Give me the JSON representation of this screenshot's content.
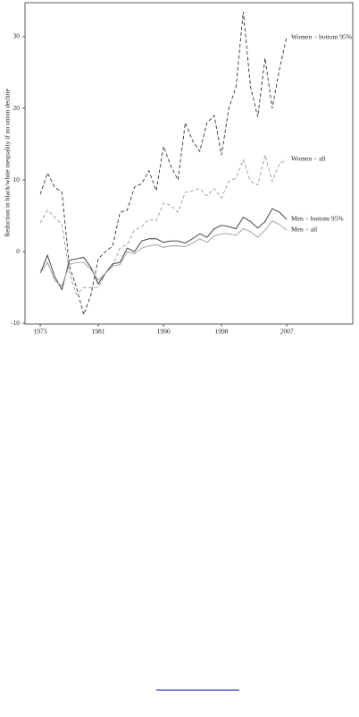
{
  "chart_data": {
    "type": "line",
    "y_label": "Reduction in black/white inequality if no union decline",
    "x": [
      1973,
      1974,
      1975,
      1976,
      1977,
      1978,
      1979,
      1980,
      1981,
      1982,
      1983,
      1984,
      1985,
      1986,
      1987,
      1988,
      1989,
      1990,
      1991,
      1992,
      1993,
      1994,
      1995,
      1996,
      1997,
      1998,
      1999,
      2000,
      2001,
      2002,
      2003,
      2004,
      2005,
      2006,
      2007
    ],
    "xlim": [
      1970.9,
      2016.1
    ],
    "xticks": [
      1973,
      1981,
      1990,
      1998,
      2007
    ],
    "ylim": [
      -10.1,
      34.75
    ],
    "yticks": [
      -10,
      0,
      10,
      20,
      30
    ],
    "series": [
      {
        "name": "Women − bottom 95%",
        "color": "#333333",
        "style": "dashed",
        "values": [
          8,
          11,
          9,
          8.3,
          -2,
          -5,
          -8.8,
          -6,
          -1,
          0,
          0.8,
          5.5,
          5.8,
          9,
          9.5,
          11.3,
          8.5,
          14.7,
          12,
          10,
          18,
          15.5,
          14,
          18,
          19,
          13.5,
          20,
          23,
          33.5,
          23,
          18.8,
          27,
          20,
          25.5,
          30
        ]
      },
      {
        "name": "Women − all",
        "color": "#9a9a9a",
        "style": "dashed",
        "values": [
          4,
          5.8,
          4.8,
          3.8,
          -3,
          -6,
          -5,
          -5,
          -5,
          -3,
          -2,
          0.5,
          1,
          3,
          3.5,
          4.5,
          4.3,
          6.8,
          6.5,
          5.5,
          8.3,
          8.5,
          8.8,
          7.8,
          8.8,
          7.5,
          9.8,
          10.3,
          12.8,
          9.8,
          9.3,
          13.5,
          9.8,
          12.3,
          12.8
        ]
      },
      {
        "name": "Men − bottom 95%",
        "color": "#333333",
        "style": "solid",
        "values": [
          -3,
          -0.5,
          -3.5,
          -5.3,
          -1.2,
          -1,
          -0.8,
          -2.2,
          -4.5,
          -3,
          -1.7,
          -1.5,
          0.5,
          0,
          1.5,
          1.8,
          1.8,
          1.3,
          1.5,
          1.5,
          1.2,
          1.8,
          2.5,
          2,
          3.2,
          3.7,
          3.5,
          3.2,
          4.8,
          4.2,
          3.3,
          4.2,
          6,
          5.5,
          4.5
        ]
      },
      {
        "name": "Men − all",
        "color": "#9a9a9a",
        "style": "solid",
        "values": [
          -3,
          -1.5,
          -4,
          -4.8,
          -1.8,
          -1.5,
          -1.5,
          -2.5,
          -4,
          -3,
          -2,
          -1.8,
          0,
          -0.3,
          0.5,
          0.8,
          1,
          0.6,
          0.8,
          0.8,
          0.7,
          1.2,
          1.8,
          1.3,
          2.2,
          2.5,
          2.5,
          2.3,
          3.2,
          2.8,
          2,
          3,
          4.3,
          3.8,
          3
        ]
      }
    ]
  }
}
